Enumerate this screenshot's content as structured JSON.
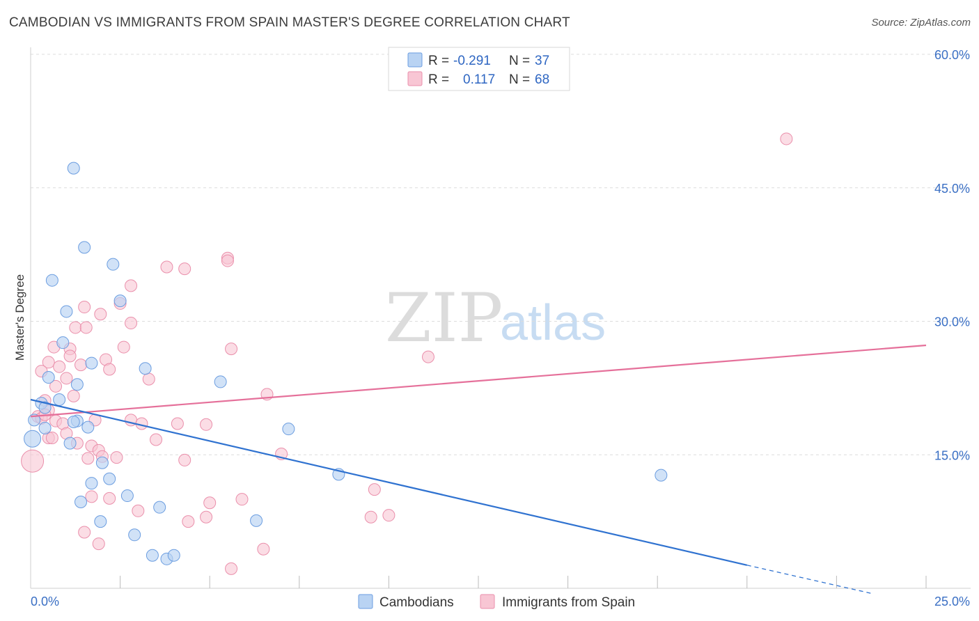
{
  "title": "CAMBODIAN VS IMMIGRANTS FROM SPAIN MASTER'S DEGREE CORRELATION CHART",
  "source": "Source: ZipAtlas.com",
  "watermark": {
    "zip": "ZIP",
    "atlas": "atlas"
  },
  "colors": {
    "cambodians_fill": "#b9d3f3",
    "cambodians_stroke": "#6b9de0",
    "cambodians_line": "#2f72d0",
    "spain_fill": "#f8c6d4",
    "spain_stroke": "#ea8fab",
    "spain_line": "#e5709a",
    "value_text": "#2e66c2"
  },
  "legend": {
    "rows": [
      {
        "r_label": "R =",
        "r_value": "-0.291",
        "n_label": "N =",
        "n_value": "37"
      },
      {
        "r_label": "R =",
        "r_value": "0.117",
        "n_label": "N =",
        "n_value": "68"
      }
    ]
  },
  "bottom_legend": {
    "cambodians": "Cambodians",
    "spain": "Immigrants from Spain"
  },
  "chart_data": {
    "type": "scatter",
    "xlabel": "",
    "ylabel": "Master's Degree",
    "xlim": [
      0,
      25
    ],
    "ylim": [
      0,
      60
    ],
    "x_tick_labels": [
      "0.0%",
      "25.0%"
    ],
    "y_tick_labels": [
      "15.0%",
      "30.0%",
      "45.0%",
      "60.0%"
    ],
    "y_ticks": [
      15,
      30,
      45,
      60
    ],
    "series": [
      {
        "name": "Cambodians",
        "r": -0.291,
        "n": 37,
        "trend": {
          "x0": 0,
          "y0": 21.2,
          "x1": 20,
          "y1": 2.6,
          "dash_to_x": 23.5,
          "dash_to_y": -0.6
        },
        "points": [
          {
            "x": 1.2,
            "y": 47.2
          },
          {
            "x": 1.5,
            "y": 38.3
          },
          {
            "x": 2.3,
            "y": 36.4
          },
          {
            "x": 0.6,
            "y": 34.6
          },
          {
            "x": 2.5,
            "y": 32.3
          },
          {
            "x": 1.0,
            "y": 31.1
          },
          {
            "x": 0.9,
            "y": 27.6
          },
          {
            "x": 1.7,
            "y": 25.3
          },
          {
            "x": 3.2,
            "y": 24.7
          },
          {
            "x": 0.5,
            "y": 23.7
          },
          {
            "x": 1.3,
            "y": 22.9
          },
          {
            "x": 5.3,
            "y": 23.2
          },
          {
            "x": 0.8,
            "y": 21.2
          },
          {
            "x": 0.3,
            "y": 20.8
          },
          {
            "x": 0.4,
            "y": 20.3
          },
          {
            "x": 0.4,
            "y": 18.0
          },
          {
            "x": 0.1,
            "y": 18.9
          },
          {
            "x": 1.3,
            "y": 18.8
          },
          {
            "x": 1.6,
            "y": 18.1
          },
          {
            "x": 7.2,
            "y": 17.9
          },
          {
            "x": 1.1,
            "y": 16.3
          },
          {
            "x": 0.05,
            "y": 16.8
          },
          {
            "x": 2.0,
            "y": 14.1
          },
          {
            "x": 8.6,
            "y": 12.8
          },
          {
            "x": 1.7,
            "y": 11.8
          },
          {
            "x": 2.2,
            "y": 12.3
          },
          {
            "x": 17.6,
            "y": 12.7
          },
          {
            "x": 2.7,
            "y": 10.4
          },
          {
            "x": 1.4,
            "y": 9.7
          },
          {
            "x": 3.6,
            "y": 9.1
          },
          {
            "x": 1.95,
            "y": 7.5
          },
          {
            "x": 6.3,
            "y": 7.6
          },
          {
            "x": 2.9,
            "y": 6.0
          },
          {
            "x": 3.4,
            "y": 3.7
          },
          {
            "x": 3.8,
            "y": 3.3
          },
          {
            "x": 4.0,
            "y": 3.7
          },
          {
            "x": 1.2,
            "y": 18.7
          }
        ]
      },
      {
        "name": "Immigrants from Spain",
        "r": 0.117,
        "n": 68,
        "trend": {
          "x0": 0,
          "y0": 19.3,
          "x1": 25,
          "y1": 27.3
        },
        "points": [
          {
            "x": 21.1,
            "y": 50.5
          },
          {
            "x": 5.5,
            "y": 37.1
          },
          {
            "x": 5.5,
            "y": 36.8
          },
          {
            "x": 3.8,
            "y": 36.1
          },
          {
            "x": 4.3,
            "y": 35.9
          },
          {
            "x": 2.8,
            "y": 34.0
          },
          {
            "x": 1.5,
            "y": 31.6
          },
          {
            "x": 1.95,
            "y": 30.8
          },
          {
            "x": 2.8,
            "y": 29.8
          },
          {
            "x": 1.25,
            "y": 29.3
          },
          {
            "x": 1.55,
            "y": 29.3
          },
          {
            "x": 0.65,
            "y": 27.1
          },
          {
            "x": 2.6,
            "y": 27.1
          },
          {
            "x": 5.6,
            "y": 26.9
          },
          {
            "x": 1.1,
            "y": 26.9
          },
          {
            "x": 1.1,
            "y": 26.1
          },
          {
            "x": 2.1,
            "y": 25.7
          },
          {
            "x": 11.1,
            "y": 26.0
          },
          {
            "x": 0.5,
            "y": 25.4
          },
          {
            "x": 1.4,
            "y": 25.1
          },
          {
            "x": 0.8,
            "y": 24.9
          },
          {
            "x": 0.3,
            "y": 24.4
          },
          {
            "x": 2.2,
            "y": 24.6
          },
          {
            "x": 3.3,
            "y": 23.5
          },
          {
            "x": 1.0,
            "y": 23.6
          },
          {
            "x": 0.7,
            "y": 22.7
          },
          {
            "x": 6.6,
            "y": 21.8
          },
          {
            "x": 1.2,
            "y": 21.6
          },
          {
            "x": 0.4,
            "y": 21.1
          },
          {
            "x": 0.5,
            "y": 20.0
          },
          {
            "x": 0.2,
            "y": 19.3
          },
          {
            "x": 0.3,
            "y": 19.1
          },
          {
            "x": 0.7,
            "y": 18.8
          },
          {
            "x": 1.8,
            "y": 18.9
          },
          {
            "x": 2.8,
            "y": 18.9
          },
          {
            "x": 3.1,
            "y": 18.5
          },
          {
            "x": 4.1,
            "y": 18.5
          },
          {
            "x": 4.9,
            "y": 18.4
          },
          {
            "x": 0.9,
            "y": 18.5
          },
          {
            "x": 1.0,
            "y": 17.4
          },
          {
            "x": 0.5,
            "y": 16.9
          },
          {
            "x": 0.6,
            "y": 16.9
          },
          {
            "x": 3.5,
            "y": 16.7
          },
          {
            "x": 1.3,
            "y": 16.3
          },
          {
            "x": 1.7,
            "y": 16.0
          },
          {
            "x": 1.9,
            "y": 15.5
          },
          {
            "x": 7.0,
            "y": 15.1
          },
          {
            "x": 2.0,
            "y": 14.8
          },
          {
            "x": 1.6,
            "y": 14.6
          },
          {
            "x": 2.4,
            "y": 14.7
          },
          {
            "x": 4.3,
            "y": 14.4
          },
          {
            "x": 0.05,
            "y": 14.3
          },
          {
            "x": 9.6,
            "y": 11.1
          },
          {
            "x": 2.2,
            "y": 10.1
          },
          {
            "x": 1.7,
            "y": 10.3
          },
          {
            "x": 5.0,
            "y": 9.6
          },
          {
            "x": 5.9,
            "y": 10.0
          },
          {
            "x": 3.0,
            "y": 8.7
          },
          {
            "x": 4.9,
            "y": 8.0
          },
          {
            "x": 9.5,
            "y": 8.0
          },
          {
            "x": 10.0,
            "y": 8.2
          },
          {
            "x": 4.4,
            "y": 7.5
          },
          {
            "x": 1.5,
            "y": 6.3
          },
          {
            "x": 1.9,
            "y": 5.0
          },
          {
            "x": 6.5,
            "y": 4.4
          },
          {
            "x": 5.6,
            "y": 2.2
          },
          {
            "x": 0.4,
            "y": 19.5
          },
          {
            "x": 2.5,
            "y": 32.0
          }
        ]
      }
    ]
  }
}
